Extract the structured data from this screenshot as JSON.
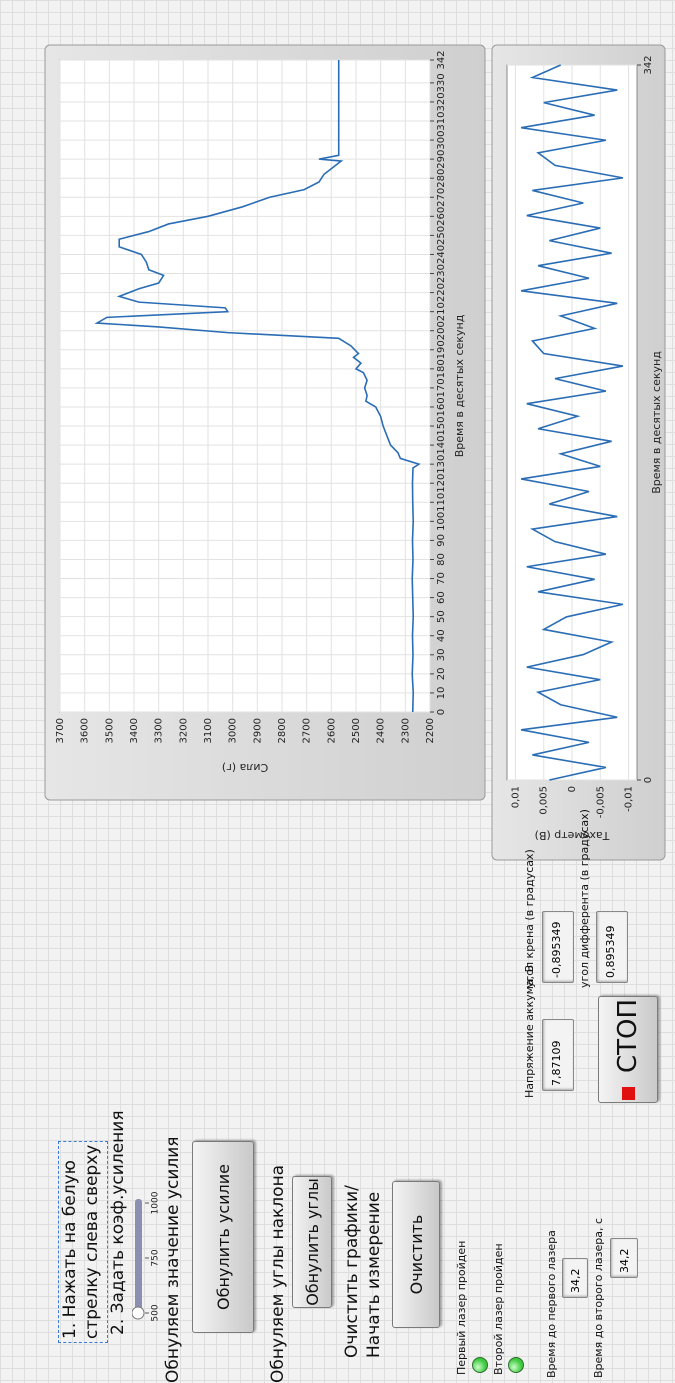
{
  "instructions": {
    "step1": [
      "1. Нажать на белую",
      "стрелку слева сверху"
    ],
    "step2": "2. Задать коэф.усиления"
  },
  "slider": {
    "ticks": [
      500,
      750,
      1000
    ],
    "value": 500
  },
  "zero_force": {
    "label": "Обнуляем значение усилия",
    "button": "Обнулить усилие"
  },
  "zero_angles": {
    "label": "Обнуляем углы наклона",
    "button": "Обнулить углы"
  },
  "clear": {
    "label": [
      "Очистить графики/",
      "Начать измерение"
    ],
    "button": "Очистить"
  },
  "leds": [
    {
      "label": "Первый лазер пройден",
      "color": "#3ec83e"
    },
    {
      "label": "Второй лазер пройден",
      "color": "#3ec83e"
    }
  ],
  "timers": [
    {
      "label": "Время до первого лазера",
      "value": "34,2"
    },
    {
      "label": "Время до второго лазера, с",
      "value": "34,2"
    }
  ],
  "indicators": [
    {
      "label": "Напряжение аккума, В",
      "value": "7,87109"
    },
    {
      "label": "угол крена (в градусах)",
      "value": "-0,895349"
    },
    {
      "label": "угол дифферента (в градусах)",
      "value": "0,895349"
    }
  ],
  "stop_button": "СТОП",
  "chart_data": [
    {
      "type": "line",
      "xlabel": "Время в десятых секунд",
      "ylabel": "Сила (г)",
      "color": "#2a6db5",
      "grid": true,
      "x": [
        0,
        10,
        20,
        30,
        40,
        50,
        60,
        70,
        80,
        90,
        100,
        110,
        120,
        128,
        130,
        133,
        136,
        140,
        145,
        150,
        155,
        160,
        163,
        166,
        170,
        174,
        178,
        180,
        183,
        186,
        188,
        190,
        192,
        196,
        199,
        202,
        204,
        207,
        210,
        212,
        215,
        218,
        222,
        225,
        229,
        232,
        236,
        240,
        244,
        248,
        252,
        256,
        260,
        265,
        270,
        274,
        278,
        282,
        286,
        289,
        290,
        292,
        342
      ],
      "values": [
        2270,
        2268,
        2272,
        2269,
        2271,
        2268,
        2270,
        2272,
        2269,
        2271,
        2268,
        2270,
        2271,
        2269,
        2245,
        2320,
        2330,
        2360,
        2375,
        2390,
        2400,
        2420,
        2460,
        2455,
        2465,
        2455,
        2470,
        2500,
        2480,
        2510,
        2490,
        2505,
        2520,
        2570,
        3020,
        3300,
        3550,
        3510,
        3020,
        3030,
        3380,
        3460,
        3380,
        3300,
        3280,
        3340,
        3350,
        3370,
        3460,
        3460,
        3340,
        3260,
        3100,
        2960,
        2850,
        2710,
        2650,
        2630,
        2590,
        2560,
        2650,
        2570,
        2570
      ],
      "xlim": [
        0,
        342
      ],
      "xticks": [
        0,
        10,
        20,
        30,
        40,
        50,
        60,
        70,
        80,
        90,
        100,
        110,
        120,
        130,
        140,
        150,
        160,
        170,
        180,
        190,
        200,
        210,
        220,
        230,
        240,
        250,
        260,
        270,
        280,
        290,
        300,
        310,
        320,
        330,
        342
      ],
      "ylim": [
        2200,
        3700
      ],
      "yticks": [
        2200,
        2300,
        2400,
        2500,
        2600,
        2700,
        2800,
        2900,
        3000,
        3100,
        3200,
        3300,
        3400,
        3500,
        3600,
        3700
      ]
    },
    {
      "type": "line",
      "xlabel": "Время в десятых секунд",
      "ylabel": "Тахометр (В)",
      "color": "#2a6db5",
      "grid": true,
      "x": [
        0,
        6,
        12,
        18,
        24,
        30,
        36,
        42,
        48,
        54,
        60,
        66,
        72,
        78,
        84,
        90,
        96,
        102,
        108,
        114,
        120,
        126,
        132,
        138,
        144,
        150,
        156,
        162,
        168,
        174,
        180,
        186,
        192,
        198,
        204,
        210,
        216,
        222,
        228,
        234,
        240,
        246,
        252,
        258,
        264,
        270,
        276,
        282,
        288,
        294,
        300,
        306,
        312,
        318,
        324,
        330,
        336,
        342
      ],
      "values": [
        0.004,
        -0.006,
        0.007,
        -0.003,
        0.009,
        -0.008,
        0.002,
        0.006,
        -0.005,
        0.008,
        -0.002,
        -0.007,
        0.005,
        0.001,
        -0.009,
        0.006,
        -0.004,
        0.008,
        -0.006,
        0.003,
        0.007,
        -0.008,
        0.004,
        -0.003,
        0.009,
        -0.005,
        0.002,
        -0.007,
        0.006,
        -0.001,
        0.008,
        -0.006,
        0.003,
        -0.009,
        0.005,
        0.007,
        -0.004,
        0.002,
        -0.008,
        0.009,
        -0.003,
        0.006,
        -0.007,
        0.004,
        -0.005,
        0.008,
        -0.002,
        0.007,
        -0.009,
        0.003,
        0.006,
        -0.006,
        0.009,
        -0.004,
        0.005,
        -0.008,
        0.007,
        0.002
      ],
      "xlim": [
        0,
        342
      ],
      "xticks": [
        0,
        342
      ],
      "ylim": [
        -0.0115,
        0.0115
      ],
      "yticks": [
        {
          "value": 0.01,
          "label": "0,01"
        },
        {
          "value": 0.005,
          "label": "0,005"
        },
        0,
        {
          "value": -0.005,
          "label": "-0,005"
        },
        {
          "value": -0.01,
          "label": "-0,01"
        }
      ]
    }
  ]
}
